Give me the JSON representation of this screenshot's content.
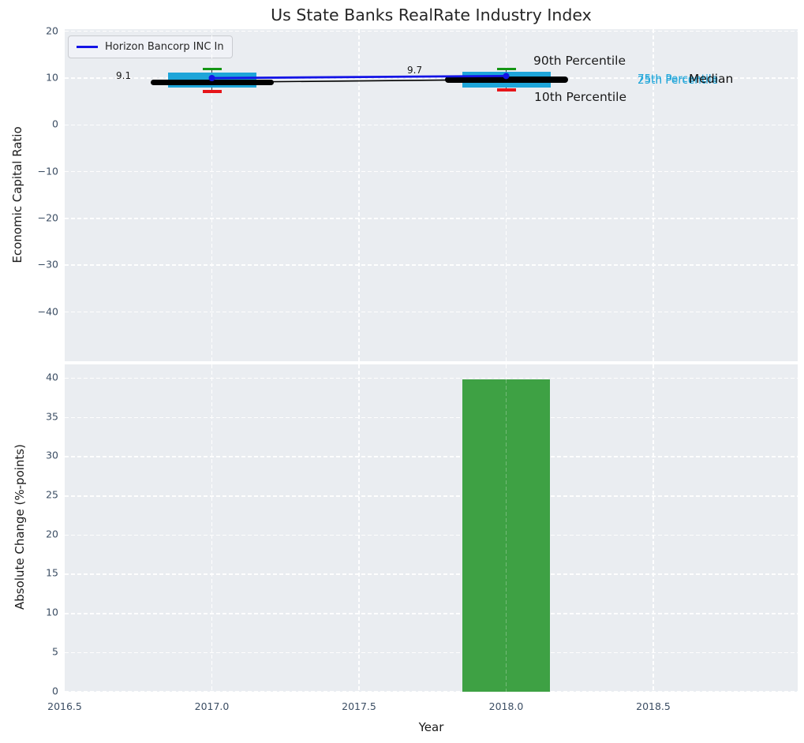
{
  "title": "Us State Banks RealRate Industry Index",
  "legend": {
    "label": "Horizon Bancorp INC In"
  },
  "colors": {
    "axes_background": "#eaedf1",
    "grid": "#ffffff",
    "box_fill": "#1ea5d9",
    "p90_cap": "#149614",
    "p10_cap": "#e61419",
    "median_line": "#000000",
    "company_line": "#1414e6",
    "bar_fill": "#3ea144",
    "tick_text": "#3b4d63",
    "text": "#262626"
  },
  "chart_data": [
    {
      "type": "box",
      "title": "Us State Banks RealRate Industry Index",
      "ylabel": "Economic Capital Ratio",
      "xlim": [
        2016.5,
        2018.99
      ],
      "ylim": [
        -50.5,
        20.5
      ],
      "grid": true,
      "legend_position": "upper left",
      "yticks": [
        {
          "v": 20,
          "label": "20"
        },
        {
          "v": 10,
          "label": "10"
        },
        {
          "v": 0,
          "label": "0"
        },
        {
          "v": -10,
          "label": "−10"
        },
        {
          "v": -20,
          "label": "−20"
        },
        {
          "v": -30,
          "label": "−30"
        },
        {
          "v": -40,
          "label": "−40"
        }
      ],
      "boxes": [
        {
          "x": 2017,
          "p10": 7.2,
          "p25": 7.9,
          "median": 9.1,
          "p75": 11.2,
          "p90": 12.0,
          "median_label": "9.1"
        },
        {
          "x": 2018,
          "p10": 7.5,
          "p25": 7.9,
          "median": 9.7,
          "p75": 11.3,
          "p90": 12.0,
          "median_label": "9.7"
        }
      ],
      "series": [
        {
          "name": "Horizon Bancorp INC In",
          "x": [
            2017,
            2018
          ],
          "y": [
            10.0,
            10.45
          ],
          "color": "#1414e6"
        }
      ],
      "annotations": [
        {
          "id": "p90",
          "text": "90th Percentile"
        },
        {
          "id": "p10",
          "text": "10th Percentile"
        },
        {
          "id": "p75",
          "text": "75th Percentile"
        },
        {
          "id": "p25",
          "text": "25th Percentile"
        },
        {
          "id": "median",
          "text": "Median"
        }
      ]
    },
    {
      "type": "bar",
      "xlabel": "Year",
      "ylabel": "Absolute Change (%-points)",
      "xlim": [
        2016.5,
        2018.99
      ],
      "ylim": [
        0,
        41.7
      ],
      "grid": true,
      "xticks": [
        {
          "v": 2016.5,
          "label": "2016.5"
        },
        {
          "v": 2017.0,
          "label": "2017.0"
        },
        {
          "v": 2017.5,
          "label": "2017.5"
        },
        {
          "v": 2018.0,
          "label": "2018.0"
        },
        {
          "v": 2018.5,
          "label": "2018.5"
        }
      ],
      "yticks": [
        {
          "v": 0,
          "label": "0"
        },
        {
          "v": 5,
          "label": "5"
        },
        {
          "v": 10,
          "label": "10"
        },
        {
          "v": 15,
          "label": "15"
        },
        {
          "v": 20,
          "label": "20"
        },
        {
          "v": 25,
          "label": "25"
        },
        {
          "v": 30,
          "label": "30"
        },
        {
          "v": 35,
          "label": "35"
        },
        {
          "v": 40,
          "label": "40"
        }
      ],
      "bars": [
        {
          "x": 2018,
          "value": 39.8,
          "width": 0.3
        }
      ]
    }
  ]
}
